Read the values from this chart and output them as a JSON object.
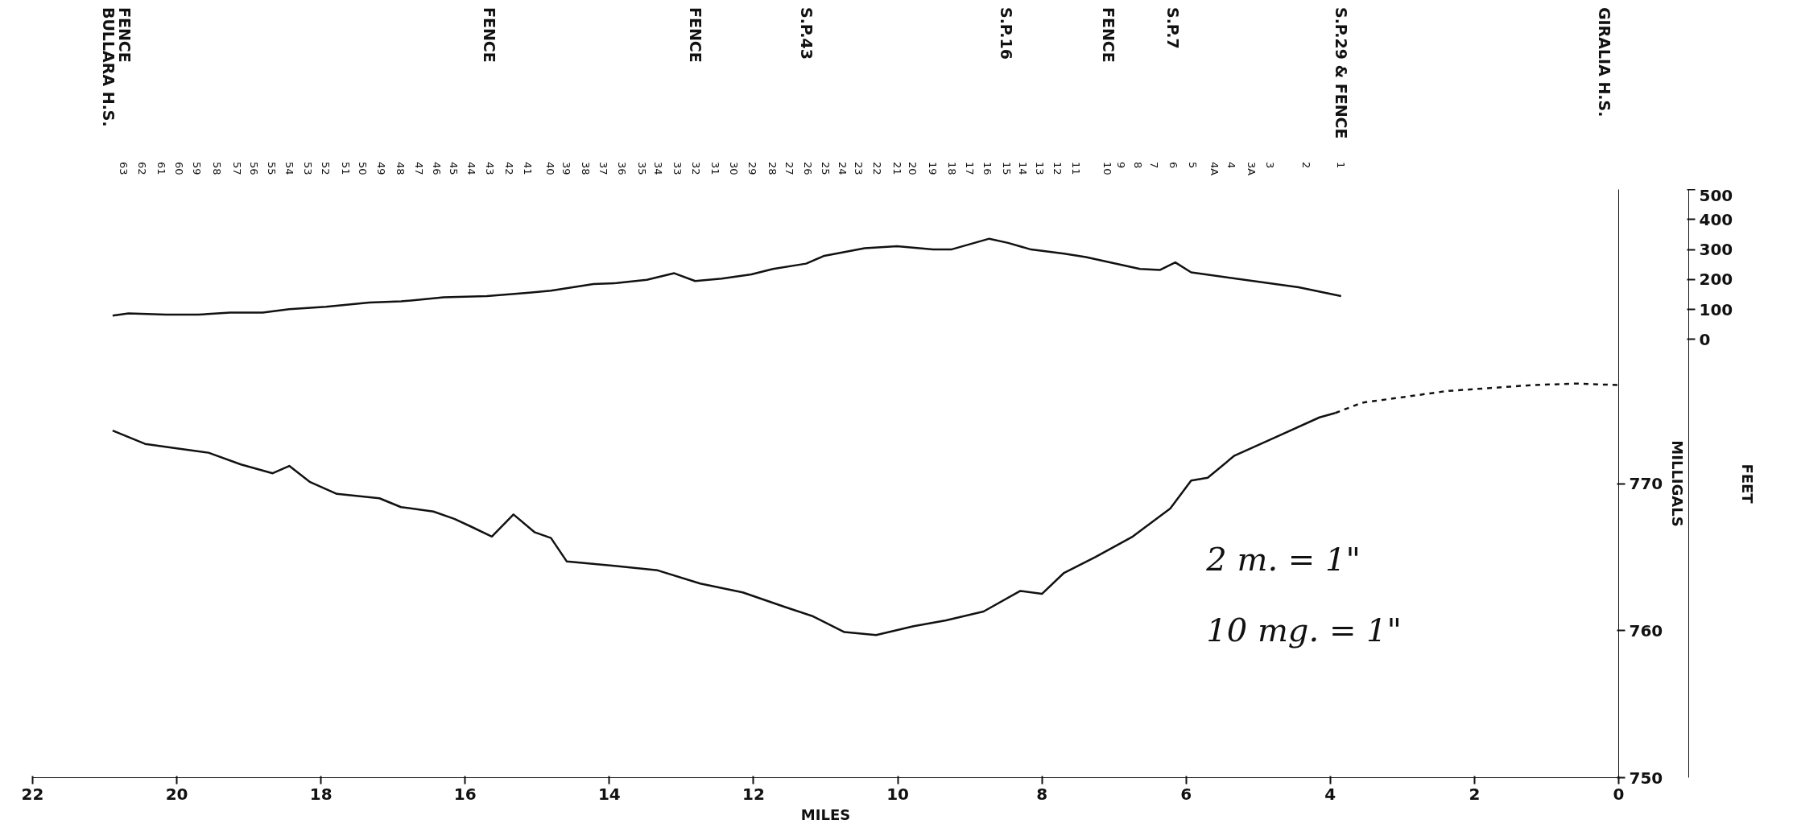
{
  "chart_data": {
    "type": "line",
    "xlabel": "MILES",
    "ylabel": "MILLIGALS",
    "y2label": "FEET",
    "xlim": [
      22,
      0
    ],
    "xticks": [
      22,
      20,
      18,
      16,
      14,
      12,
      10,
      8,
      6,
      4,
      2,
      0
    ],
    "ylim": [
      750,
      790
    ],
    "yticks": [
      750,
      760,
      770
    ],
    "y2lim": [
      -1460,
      500
    ],
    "y2ticks": [
      0,
      100,
      200,
      300,
      400,
      500
    ],
    "series": [
      {
        "color": "#111111",
        "line_style": "solid",
        "x": [
          20.89,
          20.44,
          20.0,
          19.56,
          19.11,
          18.67,
          18.44,
          18.15,
          17.78,
          17.19,
          16.89,
          16.44,
          16.15,
          15.93,
          15.63,
          15.33,
          15.04,
          14.81,
          14.59,
          13.93,
          13.33,
          12.74,
          12.15,
          11.56,
          11.19,
          10.74,
          10.3,
          9.78,
          9.33,
          8.81,
          8.3,
          8.0,
          7.7,
          7.26,
          6.74,
          6.22,
          5.93,
          5.7,
          5.33,
          4.74,
          4.15,
          3.93
        ],
        "values": [
          773.6,
          772.7,
          772.4,
          772.1,
          771.3,
          770.7,
          771.2,
          770.1,
          769.3,
          769.0,
          768.4,
          768.1,
          767.6,
          767.1,
          766.4,
          767.9,
          766.7,
          766.3,
          764.7,
          764.4,
          764.1,
          763.2,
          762.6,
          761.6,
          761.0,
          759.9,
          759.7,
          760.3,
          760.7,
          761.3,
          762.7,
          762.5,
          763.9,
          765.0,
          766.4,
          768.3,
          770.2,
          770.4,
          771.9,
          773.2,
          774.5,
          774.8
        ]
      },
      {
        "color": "#111111",
        "line_style": "dashed",
        "x": [
          3.93,
          3.56,
          2.96,
          2.37,
          1.78,
          1.19,
          0.59,
          0.0
        ],
        "values": [
          774.8,
          775.5,
          775.9,
          776.3,
          776.5,
          776.7,
          776.8,
          776.7
        ]
      },
      {
        "color": "#111111",
        "line_style": "solid",
        "axis": "y2",
        "x": [
          20.89,
          20.67,
          20.15,
          19.7,
          19.26,
          18.81,
          18.44,
          17.93,
          17.33,
          16.89,
          16.3,
          15.7,
          15.11,
          14.81,
          14.22,
          13.9,
          13.48,
          13.1,
          12.81,
          12.44,
          12.03,
          11.73,
          11.27,
          11.02,
          10.46,
          10.01,
          9.51,
          9.26,
          8.73,
          8.47,
          8.15,
          7.69,
          7.39,
          6.64,
          6.36,
          6.15,
          5.93,
          5.19,
          4.44,
          3.85
        ],
        "values": [
          80,
          87,
          83,
          83,
          90,
          90,
          101,
          109,
          123,
          127,
          141,
          145,
          156,
          163,
          185,
          188,
          199,
          221,
          195,
          203,
          217,
          235,
          253,
          279,
          304,
          311,
          300,
          300,
          336,
          322,
          300,
          286,
          275,
          235,
          232,
          257,
          224,
          199,
          174,
          145
        ]
      }
    ],
    "annotations": [
      "BULLARA H.S.",
      "FENCE",
      "FENCE",
      "FENCE",
      "S.P.43",
      "S.P.16",
      "FENCE",
      "S.P.7",
      "S.P.29 & FENCE",
      "GIRALIA H.S.",
      "63",
      "62",
      "61",
      "60",
      "59",
      "58",
      "57",
      "56",
      "55",
      "54",
      "53",
      "52",
      "51",
      "50",
      "49",
      "48",
      "47",
      "46",
      "45",
      "44",
      "43",
      "42",
      "41",
      "40",
      "39",
      "38",
      "37",
      "36",
      "35",
      "34",
      "33",
      "32",
      "31",
      "30",
      "29",
      "28",
      "27",
      "26",
      "25",
      "24",
      "23",
      "22",
      "21",
      "20",
      "19",
      "18",
      "17",
      "16",
      "15",
      "14",
      "13",
      "12",
      "11",
      "10",
      "9",
      "8",
      "7",
      "6",
      "5",
      "4A",
      "4",
      "3A",
      "3",
      "2",
      "1",
      "2 m. = 1\"",
      "10 mg. = 1\""
    ]
  }
}
